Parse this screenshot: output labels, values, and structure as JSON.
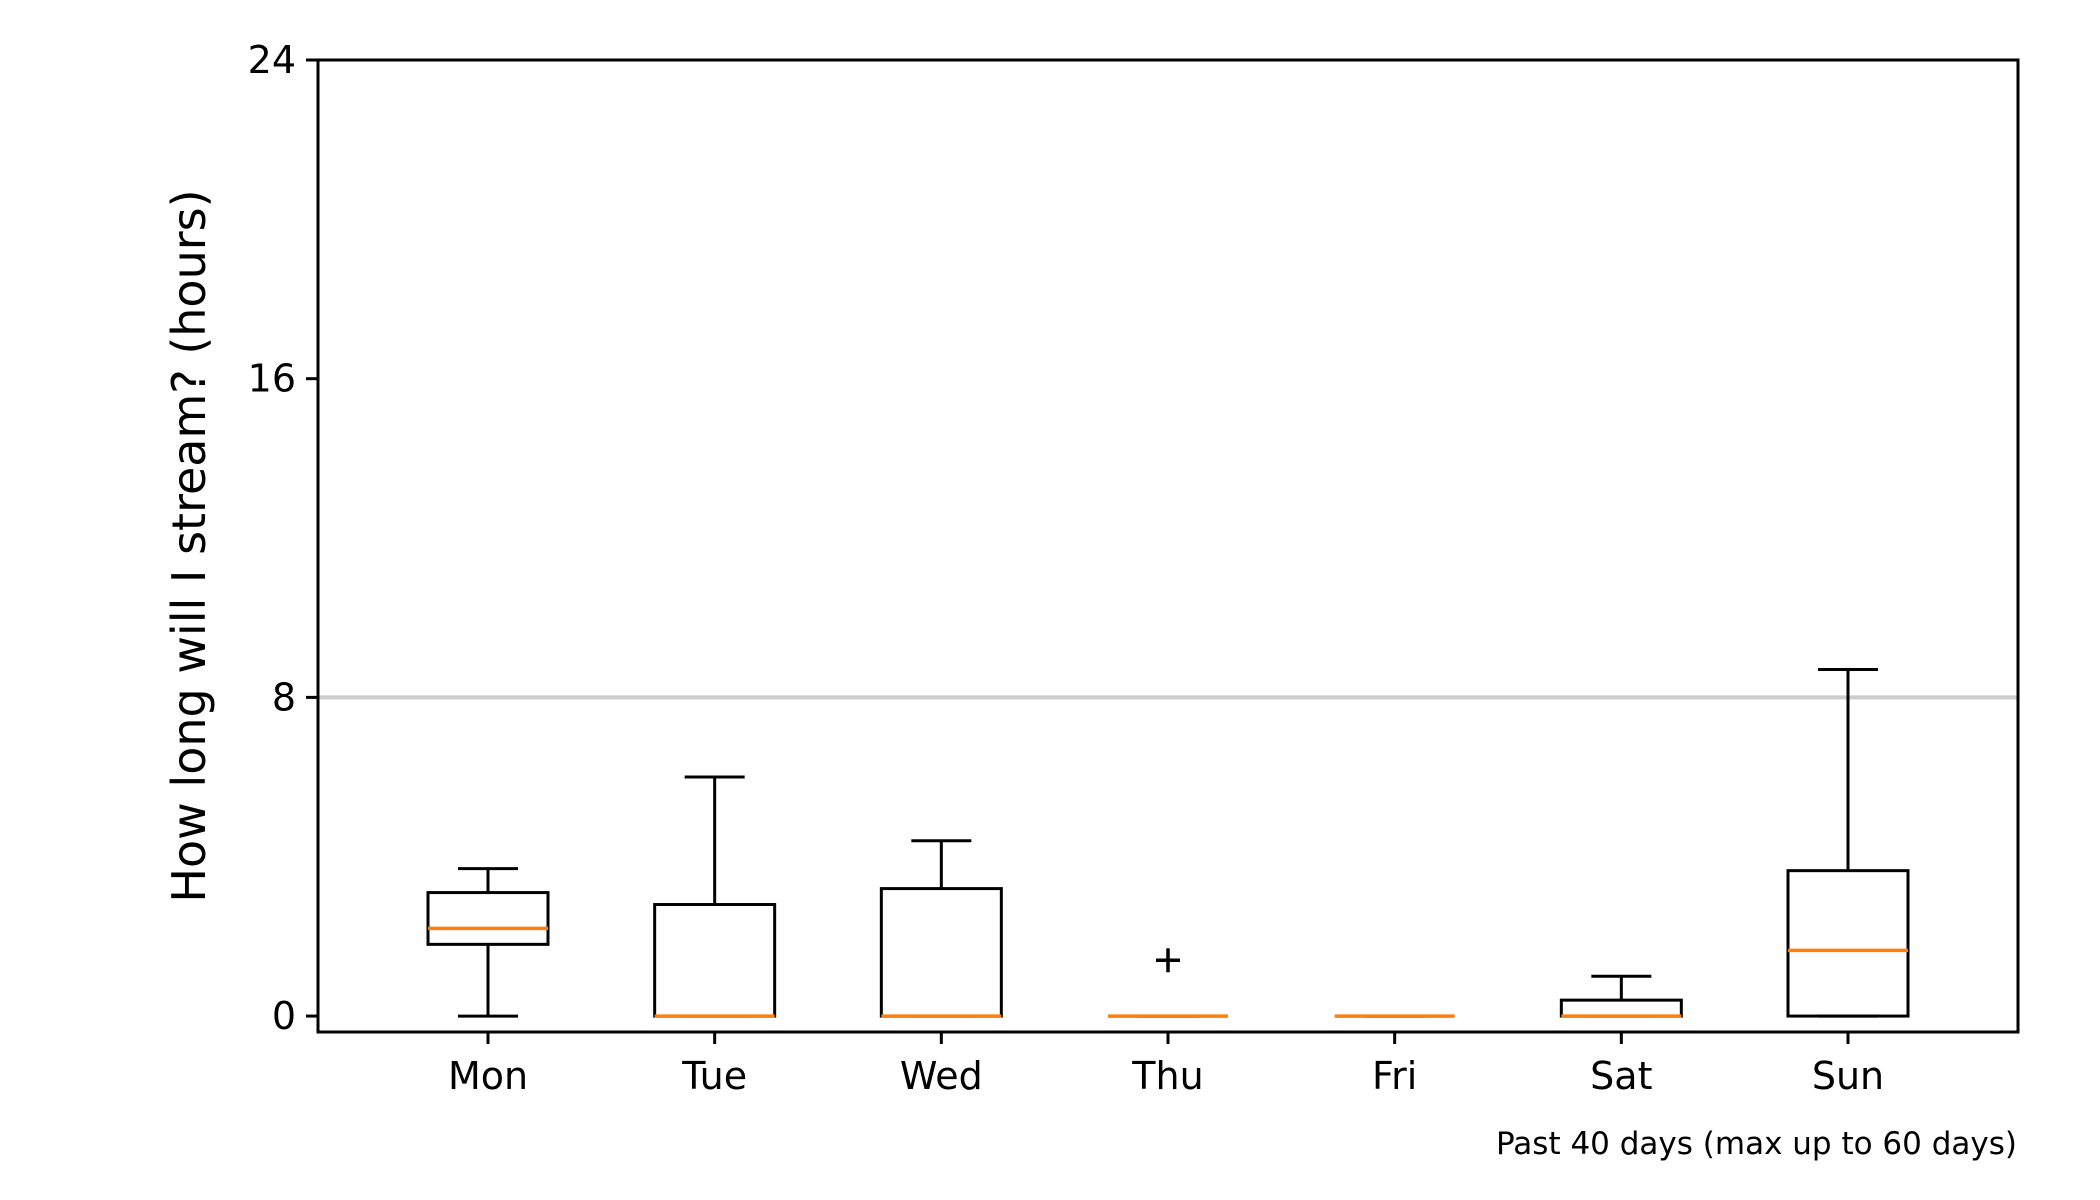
{
  "chart_data": {
    "type": "box",
    "title": "",
    "xlabel": "",
    "ylabel": "How long will I stream? (hours)",
    "footnote": "Past 40 days (max up to 60 days)",
    "categories": [
      "Mon",
      "Tue",
      "Wed",
      "Thu",
      "Fri",
      "Sat",
      "Sun"
    ],
    "ylim": [
      -0.4,
      24
    ],
    "yticks": [
      0,
      8,
      16,
      24
    ],
    "ytick_labels": [
      "0",
      "8",
      "16",
      "24"
    ],
    "grid": false,
    "reference_line": {
      "y": 8,
      "color": "#cccccc"
    },
    "colors": {
      "box": "#000000",
      "median": "#ff7f0e",
      "reference": "#cccccc"
    },
    "boxes": [
      {
        "category": "Mon",
        "whisker_low": 0,
        "q1": 1.8,
        "median": 2.2,
        "q3": 3.1,
        "whisker_high": 3.7,
        "outliers": []
      },
      {
        "category": "Tue",
        "whisker_low": 0,
        "q1": 0,
        "median": 0,
        "q3": 2.8,
        "whisker_high": 6.0,
        "outliers": []
      },
      {
        "category": "Wed",
        "whisker_low": 0,
        "q1": 0,
        "median": 0,
        "q3": 3.2,
        "whisker_high": 4.4,
        "outliers": []
      },
      {
        "category": "Thu",
        "whisker_low": 0,
        "q1": 0,
        "median": 0,
        "q3": 0,
        "whisker_high": 0,
        "outliers": [
          1.4
        ]
      },
      {
        "category": "Fri",
        "whisker_low": 0,
        "q1": 0,
        "median": 0,
        "q3": 0,
        "whisker_high": 0,
        "outliers": []
      },
      {
        "category": "Sat",
        "whisker_low": 0,
        "q1": 0,
        "median": 0,
        "q3": 0.4,
        "whisker_high": 1.0,
        "outliers": []
      },
      {
        "category": "Sun",
        "whisker_low": 0,
        "q1": 0,
        "median": 1.65,
        "q3": 3.65,
        "whisker_high": 8.7,
        "outliers": []
      }
    ]
  }
}
